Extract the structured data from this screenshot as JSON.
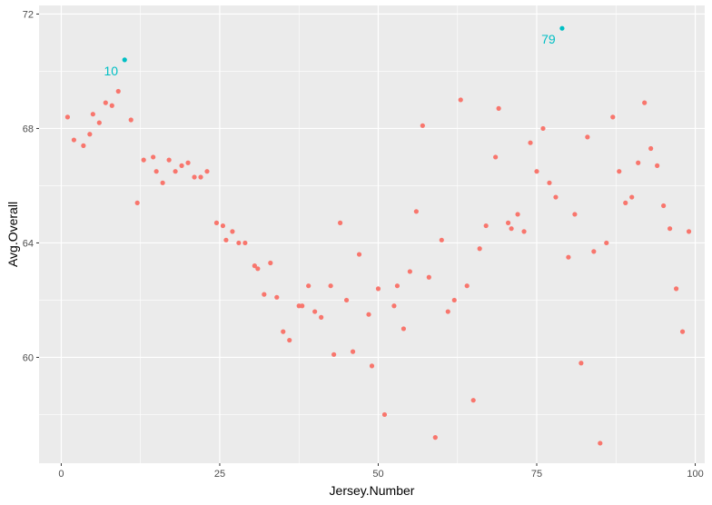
{
  "chart_data": {
    "type": "scatter",
    "title": "",
    "xlabel": "Jersey.Number",
    "ylabel": "Avg.Overall",
    "xlim": [
      -3.5,
      101.5
    ],
    "ylim": [
      56.3,
      72.3
    ],
    "x_ticks": [
      0,
      25,
      50,
      75,
      100
    ],
    "y_ticks": [
      60,
      64,
      68,
      72
    ],
    "grid": true,
    "legend": "none",
    "colors": {
      "default": "#F8766D",
      "highlight": "#00BFC4",
      "panel": "#EBEBEB",
      "grid": "#FFFFFF"
    },
    "series": [
      {
        "color": "#F8766D",
        "points": [
          {
            "x": 1,
            "y": 68.4
          },
          {
            "x": 2,
            "y": 67.6
          },
          {
            "x": 3.5,
            "y": 67.4
          },
          {
            "x": 4.5,
            "y": 67.8
          },
          {
            "x": 5,
            "y": 68.5
          },
          {
            "x": 6,
            "y": 68.2
          },
          {
            "x": 7,
            "y": 68.9
          },
          {
            "x": 8,
            "y": 68.8
          },
          {
            "x": 9,
            "y": 69.3
          },
          {
            "x": 11,
            "y": 68.3
          },
          {
            "x": 12,
            "y": 65.4
          },
          {
            "x": 13,
            "y": 66.9
          },
          {
            "x": 14.5,
            "y": 67.0
          },
          {
            "x": 15,
            "y": 66.5
          },
          {
            "x": 16,
            "y": 66.1
          },
          {
            "x": 17,
            "y": 66.9
          },
          {
            "x": 18,
            "y": 66.5
          },
          {
            "x": 19,
            "y": 66.7
          },
          {
            "x": 20,
            "y": 66.8
          },
          {
            "x": 21,
            "y": 66.3
          },
          {
            "x": 22,
            "y": 66.3
          },
          {
            "x": 23,
            "y": 66.5
          },
          {
            "x": 24.5,
            "y": 64.7
          },
          {
            "x": 25.5,
            "y": 64.6
          },
          {
            "x": 26,
            "y": 64.1
          },
          {
            "x": 27,
            "y": 64.4
          },
          {
            "x": 28,
            "y": 64.0
          },
          {
            "x": 29,
            "y": 64.0
          },
          {
            "x": 30.5,
            "y": 63.2
          },
          {
            "x": 31,
            "y": 63.1
          },
          {
            "x": 32,
            "y": 62.2
          },
          {
            "x": 33,
            "y": 63.3
          },
          {
            "x": 34,
            "y": 62.1
          },
          {
            "x": 35,
            "y": 60.9
          },
          {
            "x": 36,
            "y": 60.6
          },
          {
            "x": 37.5,
            "y": 61.8
          },
          {
            "x": 38,
            "y": 61.8
          },
          {
            "x": 39,
            "y": 62.5
          },
          {
            "x": 40,
            "y": 61.6
          },
          {
            "x": 41,
            "y": 61.4
          },
          {
            "x": 42.5,
            "y": 62.5
          },
          {
            "x": 43,
            "y": 60.1
          },
          {
            "x": 44,
            "y": 64.7
          },
          {
            "x": 45,
            "y": 62.0
          },
          {
            "x": 46,
            "y": 60.2
          },
          {
            "x": 47,
            "y": 63.6
          },
          {
            "x": 48.5,
            "y": 61.5
          },
          {
            "x": 49,
            "y": 59.7
          },
          {
            "x": 50,
            "y": 62.4
          },
          {
            "x": 51,
            "y": 58.0
          },
          {
            "x": 52.5,
            "y": 61.8
          },
          {
            "x": 53,
            "y": 62.5
          },
          {
            "x": 54,
            "y": 61.0
          },
          {
            "x": 55,
            "y": 63.0
          },
          {
            "x": 56,
            "y": 65.1
          },
          {
            "x": 57,
            "y": 68.1
          },
          {
            "x": 58,
            "y": 62.8
          },
          {
            "x": 59,
            "y": 57.2
          },
          {
            "x": 60,
            "y": 64.1
          },
          {
            "x": 61,
            "y": 61.6
          },
          {
            "x": 62,
            "y": 62.0
          },
          {
            "x": 63,
            "y": 69.0
          },
          {
            "x": 64,
            "y": 62.5
          },
          {
            "x": 65,
            "y": 58.5
          },
          {
            "x": 66,
            "y": 63.8
          },
          {
            "x": 67,
            "y": 64.6
          },
          {
            "x": 68.5,
            "y": 67.0
          },
          {
            "x": 69,
            "y": 68.7
          },
          {
            "x": 70.5,
            "y": 64.7
          },
          {
            "x": 71,
            "y": 64.5
          },
          {
            "x": 72,
            "y": 65.0
          },
          {
            "x": 73,
            "y": 64.4
          },
          {
            "x": 74,
            "y": 67.5
          },
          {
            "x": 75,
            "y": 66.5
          },
          {
            "x": 76,
            "y": 68.0
          },
          {
            "x": 77,
            "y": 66.1
          },
          {
            "x": 78,
            "y": 65.6
          },
          {
            "x": 80,
            "y": 63.5
          },
          {
            "x": 81,
            "y": 65.0
          },
          {
            "x": 82,
            "y": 59.8
          },
          {
            "x": 83,
            "y": 67.7
          },
          {
            "x": 84,
            "y": 63.7
          },
          {
            "x": 85,
            "y": 57.0
          },
          {
            "x": 86,
            "y": 64.0
          },
          {
            "x": 87,
            "y": 68.4
          },
          {
            "x": 88,
            "y": 66.5
          },
          {
            "x": 89,
            "y": 65.4
          },
          {
            "x": 90,
            "y": 65.6
          },
          {
            "x": 91,
            "y": 66.8
          },
          {
            "x": 92,
            "y": 68.9
          },
          {
            "x": 93,
            "y": 67.3
          },
          {
            "x": 94,
            "y": 66.7
          },
          {
            "x": 95,
            "y": 65.3
          },
          {
            "x": 96,
            "y": 64.5
          },
          {
            "x": 97,
            "y": 62.4
          },
          {
            "x": 98,
            "y": 60.9
          },
          {
            "x": 99,
            "y": 64.4
          }
        ]
      },
      {
        "color": "#00BFC4",
        "points": [
          {
            "x": 10,
            "y": 70.4,
            "label": "10"
          },
          {
            "x": 79,
            "y": 71.5,
            "label": "79"
          }
        ]
      }
    ]
  }
}
